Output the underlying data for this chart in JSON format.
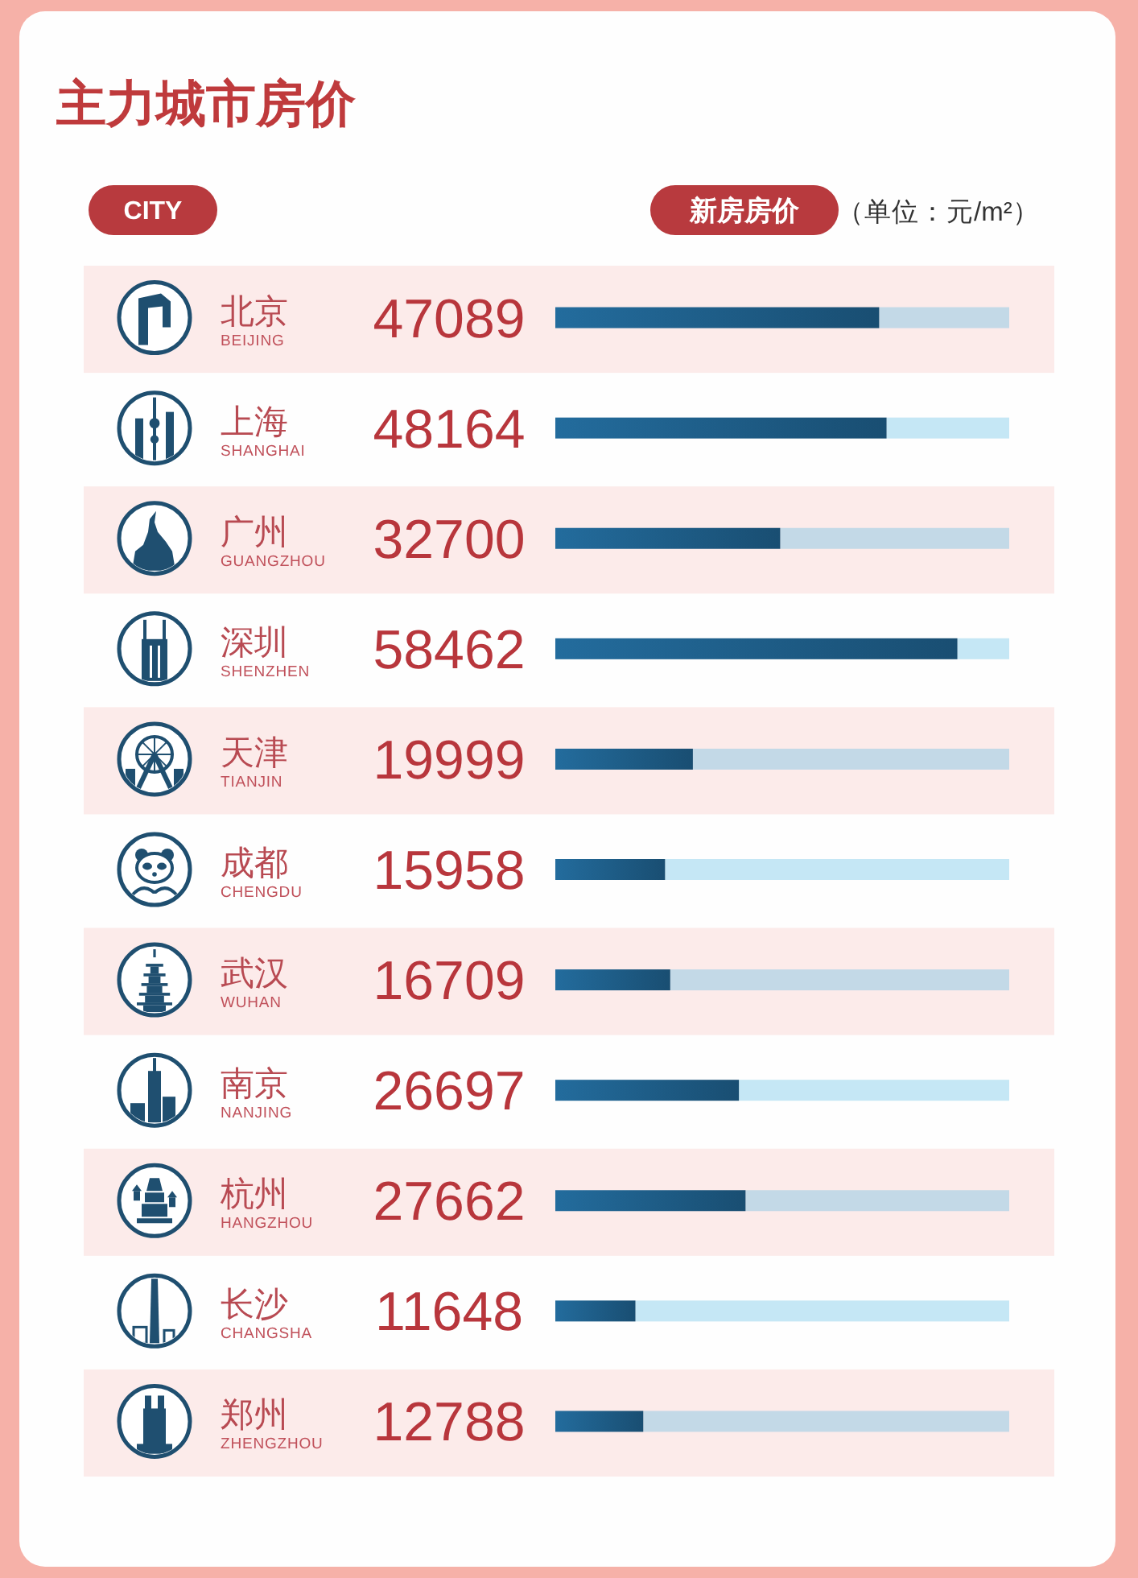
{
  "chart_data": {
    "type": "bar",
    "orientation": "horizontal",
    "title": "主力城市房价",
    "ylabel": "CITY",
    "xlabel": "新房房价",
    "annotations": [
      "（单位：元/m²）"
    ],
    "categories": [
      "北京\nBEIJING",
      "上海\nSHANGHAI",
      "广州\nGUANGZHOU",
      "深圳\nSHENZHEN",
      "天津\nTIANJIN",
      "成都\nCHENGDU",
      "武汉\nWUHAN",
      "南京\nNANJING",
      "杭州\nHANGZHOU",
      "长沙\nCHANGSHA",
      "郑州\nZHENGZHOU"
    ],
    "values": [
      47089,
      48164,
      32700,
      58462,
      19999,
      15958,
      16709,
      26697,
      27662,
      11648,
      12788
    ],
    "color": "#1f5f8b",
    "xlim": [
      0,
      66000
    ],
    "data_labels": true
  }
}
